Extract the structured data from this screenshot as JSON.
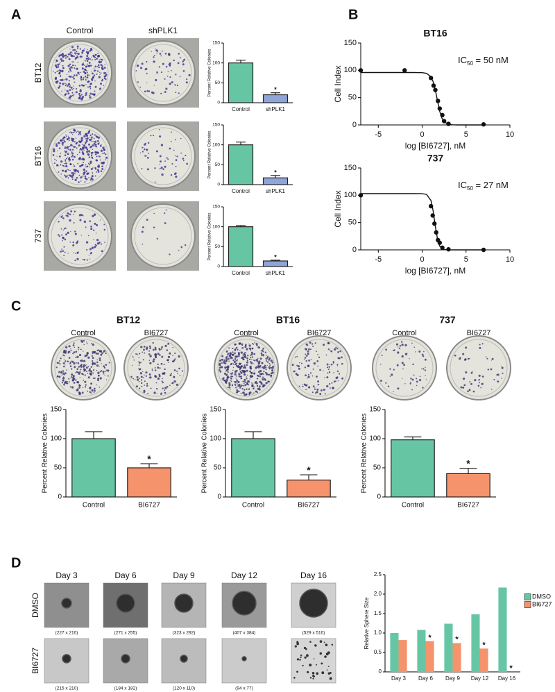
{
  "panel_labels": [
    "A",
    "B",
    "C",
    "D"
  ],
  "panel_a": {
    "column_labels": [
      "Control",
      "shPLK1"
    ],
    "row_labels": [
      "BT12",
      "BT16",
      "737"
    ]
  },
  "panel_d": {
    "column_labels": [
      "Day 3",
      "Day 6",
      "Day 9",
      "Day 12",
      "Day 16"
    ],
    "row_labels": [
      "DMSO",
      "BI6727"
    ],
    "captions": [
      [
        "(227 x 210)",
        "(271 x 255)",
        "(323 x 292)",
        "(407 x 384)",
        "(529 x 510)"
      ],
      [
        "(215 x 210)",
        "(184 x 182)",
        "(120 x 110)",
        "(94 x 77)"
      ]
    ]
  },
  "chart_data": [
    {
      "type": "bar",
      "ylabel": "Percent Relative Colonies",
      "categories": [
        "Control",
        "shPLK1"
      ],
      "values": [
        100,
        20
      ],
      "errors": [
        7,
        5
      ],
      "markers": [
        null,
        "*"
      ],
      "colors": [
        "#66c6a4",
        "#8fa5d8"
      ],
      "ylim": [
        0,
        150
      ],
      "yticks": [
        0,
        50,
        100,
        150
      ]
    },
    {
      "type": "bar",
      "ylabel": "Percent Relative Colonies",
      "categories": [
        "Control",
        "shPLK1"
      ],
      "values": [
        100,
        17
      ],
      "errors": [
        7,
        6
      ],
      "markers": [
        null,
        "*"
      ],
      "colors": [
        "#66c6a4",
        "#8fa5d8"
      ],
      "ylim": [
        0,
        150
      ],
      "yticks": [
        0,
        50,
        100,
        150
      ]
    },
    {
      "type": "bar",
      "ylabel": "Percent Relative Colonies",
      "categories": [
        "Control",
        "shPLK1"
      ],
      "values": [
        100,
        14
      ],
      "errors": [
        3,
        2
      ],
      "markers": [
        null,
        "*"
      ],
      "colors": [
        "#66c6a4",
        "#8fa5d8"
      ],
      "ylim": [
        0,
        150
      ],
      "yticks": [
        0,
        50,
        100,
        150
      ]
    },
    {
      "type": "scatter",
      "title": "BT16",
      "xlabel": "log [BI6727], nM",
      "ylabel": "Cell Index",
      "color": "#111",
      "x": [
        -7,
        -2,
        1,
        1.3,
        1.5,
        1.8,
        2,
        2.3,
        2.5,
        3,
        7
      ],
      "values": [
        100,
        100,
        86,
        72,
        64,
        44,
        30,
        18,
        7,
        2,
        1
      ],
      "curve": {
        "x": [
          -7,
          -4,
          -2,
          -1,
          0,
          0.5,
          1,
          1.25,
          1.5,
          1.75,
          2,
          2.25,
          2.5,
          3,
          3.5,
          4,
          7
        ],
        "values": [
          96,
          96,
          96,
          96,
          95.7,
          94.5,
          88.2,
          79.3,
          64,
          43.9,
          25.1,
          12.5,
          5.7,
          1.1,
          0.2,
          0,
          0
        ]
      },
      "xlim": [
        -7,
        10
      ],
      "xticks": [
        -5,
        0,
        5,
        10
      ],
      "ylim": [
        0,
        150
      ],
      "yticks": [
        0,
        50,
        100,
        150
      ],
      "annotation": {
        "text": "IC",
        "subscript": "50",
        "suffix": " = 50 nM"
      }
    },
    {
      "type": "scatter",
      "title": "737",
      "xlabel": "log [BI6727], nM",
      "ylabel": "Cell Index",
      "color": "#111",
      "x": [
        -7,
        1,
        1.2,
        1.4,
        1.6,
        1.8,
        2,
        2.3,
        3,
        7
      ],
      "values": [
        100,
        80,
        63,
        48,
        32,
        18,
        13,
        4,
        1,
        0
      ],
      "curve": {
        "x": [
          -7,
          -4,
          -2,
          -1,
          0,
          0.5,
          1,
          1.25,
          1.5,
          1.75,
          2,
          2.25,
          2.5,
          3,
          3.5,
          4,
          7
        ],
        "values": [
          103,
          103,
          103,
          103,
          102.9,
          101.6,
          90.5,
          71.7,
          43.3,
          19.2,
          7,
          2.3,
          0.7,
          0.1,
          0,
          0,
          0
        ]
      },
      "xlim": [
        -7,
        10
      ],
      "xticks": [
        -5,
        0,
        5,
        10
      ],
      "ylim": [
        0,
        150
      ],
      "yticks": [
        0,
        50,
        100,
        150
      ],
      "annotation": {
        "text": "IC",
        "subscript": "50",
        "suffix": " = 27 nM"
      }
    },
    {
      "type": "bar",
      "title": "BT12",
      "image_labels": [
        "Control",
        "BI6727"
      ],
      "ylabel": "Percent Relative Colonies",
      "categories": [
        "Control",
        "BI6727"
      ],
      "values": [
        100,
        50
      ],
      "errors": [
        12,
        7
      ],
      "markers": [
        null,
        "*"
      ],
      "colors": [
        "#66c6a4",
        "#f4936c"
      ],
      "ylim": [
        0,
        150
      ],
      "yticks": [
        0,
        50,
        100,
        150
      ]
    },
    {
      "type": "bar",
      "title": "BT16",
      "image_labels": [
        "Control",
        "BI6727"
      ],
      "ylabel": "Percent Relative Colonies",
      "categories": [
        "Control",
        "BI6727"
      ],
      "values": [
        100,
        29
      ],
      "errors": [
        12,
        9
      ],
      "markers": [
        null,
        "*"
      ],
      "colors": [
        "#66c6a4",
        "#f4936c"
      ],
      "ylim": [
        0,
        150
      ],
      "yticks": [
        0,
        50,
        100,
        150
      ]
    },
    {
      "type": "bar",
      "title": "737",
      "image_labels": [
        "Control",
        "BI6727"
      ],
      "ylabel": "Percent Relative Colonies",
      "categories": [
        "Control",
        "BI6727"
      ],
      "values": [
        98,
        40
      ],
      "errors": [
        5,
        9
      ],
      "markers": [
        null,
        "*"
      ],
      "colors": [
        "#66c6a4",
        "#f4936c"
      ],
      "ylim": [
        0,
        150
      ],
      "yticks": [
        0,
        50,
        100,
        150
      ]
    },
    {
      "type": "bar",
      "ylabel": "Relative Sphere Size",
      "categories": [
        "Day 3",
        "Day 6",
        "Day 9",
        "Day 12",
        "Day 16"
      ],
      "legend": "right",
      "series": [
        {
          "name": "DMSO",
          "color": "#66c6a4",
          "values": [
            1.0,
            1.08,
            1.24,
            1.48,
            2.17
          ]
        },
        {
          "name": "BI6727",
          "color": "#f4936c",
          "values": [
            0.82,
            0.79,
            0.74,
            0.6,
            0
          ],
          "markers": [
            null,
            "*",
            "*",
            "*",
            "*"
          ]
        }
      ],
      "ylim": [
        0,
        2.5
      ],
      "yticks": [
        0,
        0.5,
        {
          "value": 1,
          "label": "1.0"
        },
        1.5,
        {
          "value": 2,
          "label": "2.0"
        },
        2.5
      ]
    }
  ]
}
